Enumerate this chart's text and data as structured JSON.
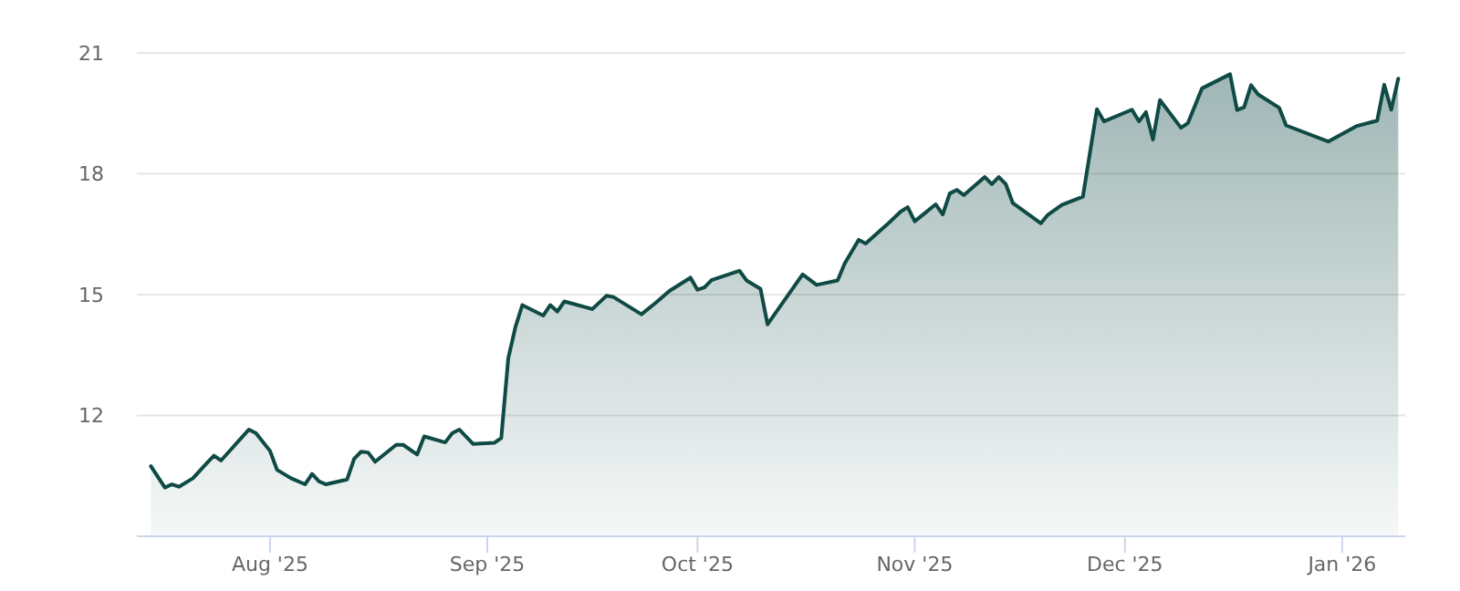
{
  "chart_data": {
    "type": "area",
    "xlim": [
      "2025-07-13",
      "2026-01-10"
    ],
    "ylim": [
      9,
      21
    ],
    "yticks": [
      12,
      15,
      18,
      21
    ],
    "xticks": [
      {
        "value": "2025-08-01",
        "label": "Aug '25"
      },
      {
        "value": "2025-09-01",
        "label": "Sep '25"
      },
      {
        "value": "2025-10-01",
        "label": "Oct '25"
      },
      {
        "value": "2025-11-01",
        "label": "Nov '25"
      },
      {
        "value": "2025-12-01",
        "label": "Dec '25"
      },
      {
        "value": "2026-01-01",
        "label": "Jan '26"
      }
    ],
    "grid": "y",
    "marker": "none",
    "line_style": "solid",
    "x": [
      "2025-07-15",
      "2025-07-17",
      "2025-07-18",
      "2025-07-19",
      "2025-07-21",
      "2025-07-23",
      "2025-07-24",
      "2025-07-25",
      "2025-07-29",
      "2025-07-30",
      "2025-08-01",
      "2025-08-02",
      "2025-08-04",
      "2025-08-06",
      "2025-08-07",
      "2025-08-08",
      "2025-08-09",
      "2025-08-12",
      "2025-08-13",
      "2025-08-14",
      "2025-08-15",
      "2025-08-16",
      "2025-08-19",
      "2025-08-20",
      "2025-08-22",
      "2025-08-23",
      "2025-08-26",
      "2025-08-27",
      "2025-08-28",
      "2025-08-30",
      "2025-09-02",
      "2025-09-03",
      "2025-09-04",
      "2025-09-05",
      "2025-09-06",
      "2025-09-09",
      "2025-09-10",
      "2025-09-11",
      "2025-09-12",
      "2025-09-16",
      "2025-09-18",
      "2025-09-19",
      "2025-09-23",
      "2025-09-25",
      "2025-09-27",
      "2025-09-30",
      "2025-10-01",
      "2025-10-02",
      "2025-10-03",
      "2025-10-07",
      "2025-10-08",
      "2025-10-10",
      "2025-10-11",
      "2025-10-16",
      "2025-10-18",
      "2025-10-21",
      "2025-10-22",
      "2025-10-24",
      "2025-10-25",
      "2025-10-28",
      "2025-10-30",
      "2025-10-31",
      "2025-11-01",
      "2025-11-04",
      "2025-11-05",
      "2025-11-06",
      "2025-11-07",
      "2025-11-08",
      "2025-11-11",
      "2025-11-12",
      "2025-11-13",
      "2025-11-14",
      "2025-11-15",
      "2025-11-19",
      "2025-11-20",
      "2025-11-22",
      "2025-11-25",
      "2025-11-27",
      "2025-11-28",
      "2025-12-02",
      "2025-12-03",
      "2025-12-04",
      "2025-12-05",
      "2025-12-06",
      "2025-12-09",
      "2025-12-10",
      "2025-12-12",
      "2025-12-16",
      "2025-12-17",
      "2025-12-18",
      "2025-12-19",
      "2025-12-20",
      "2025-12-23",
      "2025-12-24",
      "2025-12-30",
      "2026-01-03",
      "2026-01-06",
      "2026-01-07",
      "2026-01-08",
      "2026-01-09"
    ],
    "series": [
      {
        "color": "#0f4a45",
        "values": [
          10.74,
          10.21,
          10.29,
          10.23,
          10.44,
          10.82,
          11.0,
          10.88,
          11.65,
          11.56,
          11.12,
          10.65,
          10.44,
          10.29,
          10.55,
          10.36,
          10.29,
          10.41,
          10.92,
          11.1,
          11.08,
          10.85,
          11.27,
          11.27,
          11.03,
          11.48,
          11.33,
          11.56,
          11.65,
          11.29,
          11.32,
          11.44,
          13.42,
          14.18,
          14.74,
          14.48,
          14.74,
          14.58,
          14.83,
          14.64,
          14.97,
          14.94,
          14.51,
          14.79,
          15.09,
          15.42,
          15.12,
          15.18,
          15.36,
          15.59,
          15.35,
          15.14,
          14.26,
          15.5,
          15.24,
          15.35,
          15.77,
          16.36,
          16.27,
          16.73,
          17.06,
          17.17,
          16.82,
          17.24,
          16.99,
          17.51,
          17.6,
          17.47,
          17.92,
          17.74,
          17.92,
          17.74,
          17.27,
          16.77,
          16.98,
          17.23,
          17.43,
          19.6,
          19.3,
          19.59,
          19.3,
          19.53,
          18.85,
          19.83,
          19.14,
          19.26,
          20.12,
          20.47,
          19.58,
          19.65,
          20.2,
          19.97,
          19.64,
          19.2,
          18.8,
          19.18,
          19.32,
          20.21,
          19.59,
          20.36
        ]
      }
    ]
  }
}
